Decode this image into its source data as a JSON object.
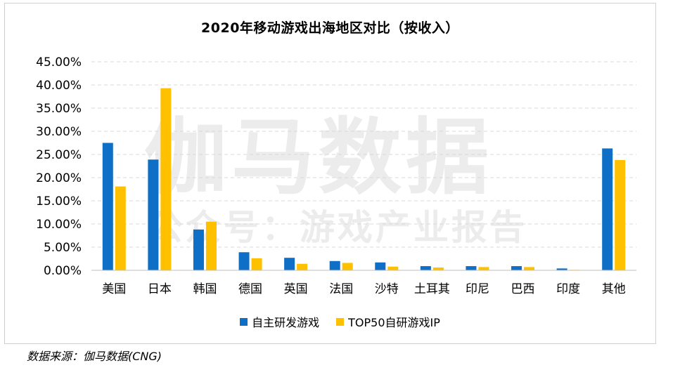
{
  "chart_data": {
    "type": "bar",
    "title": "2020年移动游戏出海地区对比（按收入）",
    "categories": [
      "美国",
      "日本",
      "韩国",
      "德国",
      "英国",
      "法国",
      "沙特",
      "土耳其",
      "印尼",
      "巴西",
      "印度",
      "其他"
    ],
    "series": [
      {
        "name": "自主研发游戏",
        "color": "#0f6fc6",
        "values": [
          27.5,
          23.9,
          8.8,
          3.9,
          2.7,
          2.0,
          1.7,
          0.9,
          0.9,
          0.9,
          0.4,
          26.3
        ]
      },
      {
        "name": "TOP50自研游戏IP",
        "color": "#ffc000",
        "values": [
          18.1,
          39.3,
          10.5,
          2.6,
          1.4,
          1.6,
          0.8,
          0.6,
          0.7,
          0.7,
          0.1,
          23.8
        ]
      }
    ],
    "ylim": [
      0,
      45
    ],
    "yticks": [
      0,
      5,
      10,
      15,
      20,
      25,
      30,
      35,
      40,
      45
    ],
    "ytick_labels": [
      "0.00%",
      "5.00%",
      "10.00%",
      "15.00%",
      "20.00%",
      "25.00%",
      "30.00%",
      "35.00%",
      "40.00%",
      "45.00%"
    ],
    "grid": true,
    "legend_position": "bottom"
  },
  "watermark": {
    "line1": "伽马数据",
    "line2": "公众号：游戏产业报告"
  },
  "source": "数据来源：伽马数据(CNG)"
}
